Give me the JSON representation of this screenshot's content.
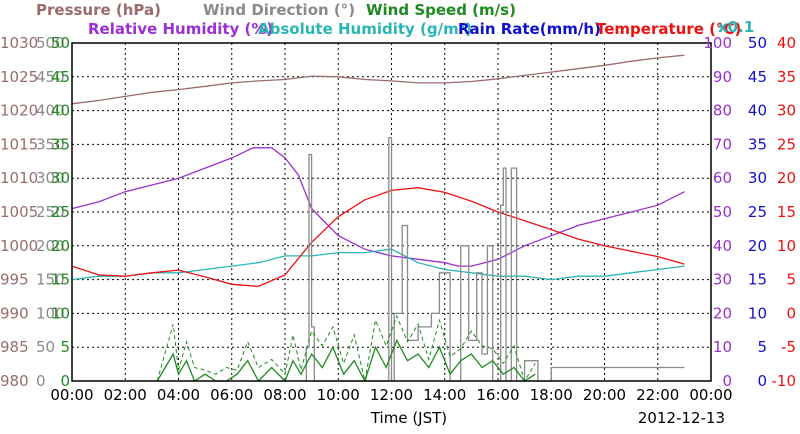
{
  "chart_data": {
    "type": "line",
    "title": "",
    "date_label": "2012-12-13",
    "xlabel": "Time (JST)",
    "x_ticks": [
      "00:00",
      "02:00",
      "04:00",
      "06:00",
      "08:00",
      "10:00",
      "12:00",
      "14:00",
      "16:00",
      "18:00",
      "20:00",
      "22:00",
      "00:00"
    ],
    "x_range_hours": [
      0,
      24
    ],
    "grid": true,
    "legend_placement": "top",
    "legend": [
      {
        "label": "Pressure (hPa)",
        "color": "#9b6b6b"
      },
      {
        "label": "Wind Direction (°)",
        "color": "#8a8a8a"
      },
      {
        "label": "Wind Speed (m/s)",
        "color": "#1f8a1f"
      },
      {
        "label": "Relative Humidity (%)",
        "color": "#9b30d0"
      },
      {
        "label": "Absolute Humidity (g/m³)",
        "color": "#2ab5b5"
      },
      {
        "label": "Rain Rate(mm/h)",
        "color": "#1010c8"
      },
      {
        "label": "Temperature (°C)",
        "color": "#ee1010"
      }
    ],
    "multiplier_note": "x0.1",
    "axes": {
      "pressure": {
        "ticks": [
          "980",
          "985",
          "990",
          "995",
          "1000",
          "1005",
          "1010",
          "1015",
          "1020",
          "1025",
          "1030"
        ],
        "range": [
          980,
          1030
        ],
        "color": "#9b6b6b"
      },
      "wind_direction": {
        "ticks": [
          "0",
          "50",
          "100",
          "150",
          "200",
          "250",
          "300",
          "350",
          "400",
          "450",
          "500"
        ],
        "range": [
          0,
          500
        ],
        "color": "#8a8a8a"
      },
      "wind_speed": {
        "ticks": [
          "0",
          "5",
          "10",
          "15",
          "20",
          "25",
          "30",
          "35",
          "40",
          "45",
          "50"
        ],
        "range": [
          0,
          50
        ],
        "color": "#1f8a1f"
      },
      "humidity": {
        "ticks": [
          "0",
          "10",
          "20",
          "30",
          "40",
          "50",
          "60",
          "70",
          "80",
          "90",
          "100"
        ],
        "range": [
          0,
          100
        ],
        "color": "#9b30d0"
      },
      "rain": {
        "ticks": [
          "0",
          "5",
          "10",
          "15",
          "20",
          "25",
          "30",
          "35",
          "40",
          "45",
          "50"
        ],
        "range": [
          0,
          50
        ],
        "color": "#1010c8"
      },
      "temperature": {
        "ticks": [
          "-10",
          "-5",
          "0",
          "5",
          "10",
          "15",
          "20",
          "25",
          "30",
          "35",
          "40"
        ],
        "range": [
          -10,
          40
        ],
        "color": "#ee1010"
      }
    },
    "series": [
      {
        "name": "Pressure (hPa)",
        "axis": "pressure",
        "color": "#9b6b6b",
        "x": [
          0,
          1,
          2,
          3,
          4,
          5,
          6,
          7,
          8,
          9,
          10,
          11,
          12,
          13,
          14,
          15,
          16,
          17,
          18,
          19,
          20,
          21,
          22,
          23
        ],
        "values": [
          1021.0,
          1021.5,
          1022.1,
          1022.7,
          1023.1,
          1023.6,
          1024.1,
          1024.4,
          1024.6,
          1025.1,
          1025.0,
          1024.6,
          1024.4,
          1024.1,
          1024.1,
          1024.3,
          1024.7,
          1025.2,
          1025.7,
          1026.2,
          1026.7,
          1027.3,
          1027.8,
          1028.2
        ]
      },
      {
        "name": "Relative Humidity (%)",
        "axis": "humidity",
        "color": "#9b30d0",
        "x": [
          0,
          1,
          2,
          3,
          4,
          5,
          6,
          6.8,
          7.5,
          8,
          8.5,
          9,
          10,
          11,
          11.5,
          12,
          13,
          14,
          14.5,
          15,
          15.5,
          16,
          17,
          18,
          19,
          20,
          21,
          22,
          23
        ],
        "values": [
          51,
          53,
          56,
          58,
          60,
          63,
          66,
          69,
          69,
          66,
          61,
          51,
          43,
          39,
          38,
          37,
          36,
          35,
          34,
          34,
          35,
          36,
          40,
          43,
          46,
          48,
          50,
          52,
          56
        ]
      },
      {
        "name": "Absolute Humidity (g/m³)",
        "axis": "humidity",
        "color": "#2ab5b5",
        "x": [
          0,
          1,
          2,
          3,
          4,
          5,
          6,
          7,
          8,
          9,
          10,
          11,
          12,
          13,
          14,
          15,
          16,
          17,
          18,
          19,
          20,
          21,
          22,
          23
        ],
        "values": [
          30,
          31,
          31,
          32,
          32,
          33,
          34,
          35,
          37,
          37,
          38,
          38,
          39,
          35,
          33,
          32,
          31,
          31,
          30,
          31,
          31,
          32,
          33,
          34
        ]
      },
      {
        "name": "Temperature (°C)",
        "axis": "temperature",
        "color": "#ee1010",
        "x": [
          0,
          1,
          2,
          3,
          4,
          5,
          6,
          7,
          8,
          9,
          10,
          11,
          12,
          13,
          14,
          15,
          16,
          17,
          18,
          19,
          20,
          21,
          22,
          23
        ],
        "values": [
          7.0,
          5.7,
          5.5,
          6.0,
          6.4,
          5.4,
          4.3,
          4.0,
          5.7,
          10.5,
          14.3,
          16.8,
          18.2,
          18.6,
          17.9,
          16.6,
          15.0,
          13.7,
          12.4,
          11.0,
          10.0,
          9.2,
          8.4,
          7.3
        ]
      },
      {
        "name": "Wind Direction (°)",
        "axis": "wind_direction",
        "color": "#8a8a8a",
        "x": [
          8.7,
          8.8,
          8.9,
          9.0,
          9.1,
          11.7,
          11.9,
          12.0,
          12.1,
          12.4,
          12.6,
          13.0,
          13.5,
          13.8,
          14.2,
          14.6,
          14.9,
          15.2,
          15.4,
          15.6,
          15.8,
          16.1,
          16.2,
          16.3,
          16.5,
          16.7,
          17.0,
          17.5,
          18.0,
          21.0,
          23.0
        ],
        "values": [
          0,
          50,
          335,
          80,
          0,
          0,
          360,
          0,
          100,
          230,
          60,
          80,
          100,
          160,
          0,
          200,
          60,
          160,
          40,
          200,
          0,
          260,
          315,
          0,
          315,
          0,
          30,
          0,
          20,
          20,
          20
        ]
      },
      {
        "name": "Wind Speed (m/s)",
        "axis": "wind_speed",
        "color": "#1f8a1f",
        "x": [
          3.2,
          3.5,
          3.8,
          4.0,
          4.3,
          4.6,
          5.0,
          5.4,
          5.8,
          6.2,
          6.6,
          7.0,
          7.5,
          8.0,
          8.3,
          8.6,
          9.0,
          9.4,
          9.8,
          10.2,
          10.6,
          11.0,
          11.4,
          11.8,
          12.2,
          12.6,
          13.0,
          13.4,
          13.8,
          14.2,
          14.6,
          15.0,
          15.4,
          15.8,
          16.2,
          16.6,
          17.0,
          17.4
        ],
        "values": [
          0,
          2,
          4,
          1,
          3,
          0,
          1,
          0,
          0,
          1,
          3,
          0,
          2,
          0,
          3,
          1,
          4,
          2,
          5,
          1,
          3,
          0,
          5,
          2,
          6,
          3,
          4,
          2,
          5,
          1,
          3,
          4,
          2,
          3,
          1,
          2,
          0,
          1
        ]
      }
    ]
  }
}
